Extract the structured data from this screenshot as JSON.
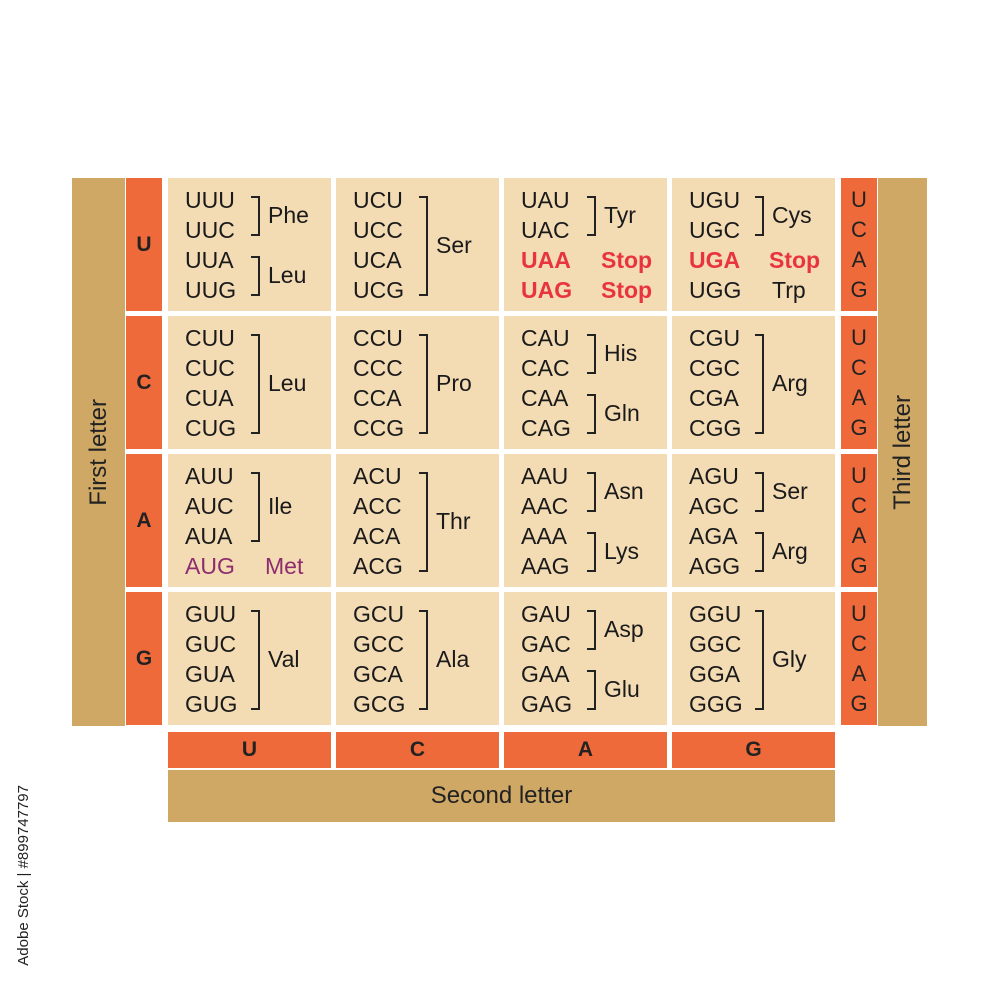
{
  "axis_labels": {
    "first": "First letter",
    "second": "Second letter",
    "third": "Third letter"
  },
  "bases": [
    "U",
    "C",
    "A",
    "G"
  ],
  "side_text": "Adobe Stock | #899747797",
  "colors": {
    "cell": "#f3dbb4",
    "header": "#ef6a3a",
    "band": "#cfa865",
    "stop": "#e8343f",
    "start": "#8e2d6e"
  },
  "rows": [
    {
      "first": "U",
      "cells": [
        {
          "codons": [
            "UUU",
            "UUC",
            "UUA",
            "UUG"
          ],
          "groups": [
            {
              "from": 0,
              "to": 1,
              "aa": "Phe"
            },
            {
              "from": 2,
              "to": 3,
              "aa": "Leu"
            }
          ]
        },
        {
          "codons": [
            "UCU",
            "UCC",
            "UCA",
            "UCG"
          ],
          "groups": [
            {
              "from": 0,
              "to": 3,
              "aa": "Ser"
            }
          ]
        },
        {
          "codons": [
            "UAU",
            "UAC",
            "UAA",
            "UAG"
          ],
          "groups": [
            {
              "from": 0,
              "to": 1,
              "aa": "Tyr"
            },
            {
              "from": 2,
              "to": 2,
              "aa": "Stop",
              "style": "stop"
            },
            {
              "from": 3,
              "to": 3,
              "aa": "Stop",
              "style": "stop"
            }
          ]
        },
        {
          "codons": [
            "UGU",
            "UGC",
            "UGA",
            "UGG"
          ],
          "groups": [
            {
              "from": 0,
              "to": 1,
              "aa": "Cys"
            },
            {
              "from": 2,
              "to": 2,
              "aa": "Stop",
              "style": "stop"
            },
            {
              "from": 3,
              "to": 3,
              "aa": "Trp"
            }
          ]
        }
      ]
    },
    {
      "first": "C",
      "cells": [
        {
          "codons": [
            "CUU",
            "CUC",
            "CUA",
            "CUG"
          ],
          "groups": [
            {
              "from": 0,
              "to": 3,
              "aa": "Leu"
            }
          ]
        },
        {
          "codons": [
            "CCU",
            "CCC",
            "CCA",
            "CCG"
          ],
          "groups": [
            {
              "from": 0,
              "to": 3,
              "aa": "Pro"
            }
          ]
        },
        {
          "codons": [
            "CAU",
            "CAC",
            "CAA",
            "CAG"
          ],
          "groups": [
            {
              "from": 0,
              "to": 1,
              "aa": "His"
            },
            {
              "from": 2,
              "to": 3,
              "aa": "Gln"
            }
          ]
        },
        {
          "codons": [
            "CGU",
            "CGC",
            "CGA",
            "CGG"
          ],
          "groups": [
            {
              "from": 0,
              "to": 3,
              "aa": "Arg"
            }
          ]
        }
      ]
    },
    {
      "first": "A",
      "cells": [
        {
          "codons": [
            "AUU",
            "AUC",
            "AUA",
            "AUG"
          ],
          "groups": [
            {
              "from": 0,
              "to": 2,
              "aa": "Ile"
            },
            {
              "from": 3,
              "to": 3,
              "aa": "Met",
              "style": "start"
            }
          ]
        },
        {
          "codons": [
            "ACU",
            "ACC",
            "ACA",
            "ACG"
          ],
          "groups": [
            {
              "from": 0,
              "to": 3,
              "aa": "Thr"
            }
          ]
        },
        {
          "codons": [
            "AAU",
            "AAC",
            "AAA",
            "AAG"
          ],
          "groups": [
            {
              "from": 0,
              "to": 1,
              "aa": "Asn"
            },
            {
              "from": 2,
              "to": 3,
              "aa": "Lys"
            }
          ]
        },
        {
          "codons": [
            "AGU",
            "AGC",
            "AGA",
            "AGG"
          ],
          "groups": [
            {
              "from": 0,
              "to": 1,
              "aa": "Ser"
            },
            {
              "from": 2,
              "to": 3,
              "aa": "Arg"
            }
          ]
        }
      ]
    },
    {
      "first": "G",
      "cells": [
        {
          "codons": [
            "GUU",
            "GUC",
            "GUA",
            "GUG"
          ],
          "groups": [
            {
              "from": 0,
              "to": 3,
              "aa": "Val"
            }
          ]
        },
        {
          "codons": [
            "GCU",
            "GCC",
            "GCA",
            "GCG"
          ],
          "groups": [
            {
              "from": 0,
              "to": 3,
              "aa": "Ala"
            }
          ]
        },
        {
          "codons": [
            "GAU",
            "GAC",
            "GAA",
            "GAG"
          ],
          "groups": [
            {
              "from": 0,
              "to": 1,
              "aa": "Asp"
            },
            {
              "from": 2,
              "to": 3,
              "aa": "Glu"
            }
          ]
        },
        {
          "codons": [
            "GGU",
            "GGC",
            "GGA",
            "GGG"
          ],
          "groups": [
            {
              "from": 0,
              "to": 3,
              "aa": "Gly"
            }
          ]
        }
      ]
    }
  ]
}
